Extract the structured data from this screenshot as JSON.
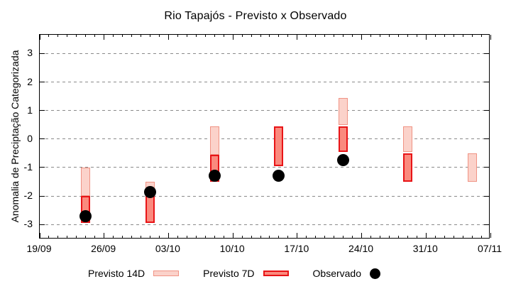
{
  "chart_data": {
    "type": "bar",
    "title": "Rio Tapajós - Previsto x Observado",
    "ylabel": "Anomalia de Preciptação Categorizada",
    "ylim": [
      -3.52,
      3.66
    ],
    "yticks": [
      -3,
      -2,
      -1,
      0,
      1,
      2,
      3
    ],
    "grid": "horizontal dashed gray lines at every integer y value",
    "x_axis": {
      "days_total": 49,
      "major_every": 7,
      "minor_every": 1,
      "major_labels": [
        "19/09",
        "26/09",
        "03/10",
        "10/10",
        "17/10",
        "24/10",
        "31/10",
        "07/11"
      ]
    },
    "legend": [
      {
        "label": "Previsto 14D",
        "swatch": "previsto14"
      },
      {
        "label": "Previsto 7D",
        "swatch": "previsto7"
      },
      {
        "label": "Observado",
        "swatch": "observado-dot"
      }
    ],
    "groups": [
      {
        "date": "24/09",
        "day": 5,
        "previsto14": [
          -1.0,
          -2.0
        ],
        "previsto7": [
          -2.0,
          -2.95
        ],
        "observado": -2.7
      },
      {
        "date": "01/10",
        "day": 12,
        "previsto14": [
          -1.5,
          -2.0
        ],
        "previsto7": [
          -2.0,
          -2.95
        ],
        "observado": -1.85
      },
      {
        "date": "08/10",
        "day": 19,
        "previsto14": [
          0.45,
          -0.55
        ],
        "previsto7": [
          -0.55,
          -1.5
        ],
        "observado": -1.3
      },
      {
        "date": "15/10",
        "day": 26,
        "previsto14": null,
        "previsto7": [
          0.45,
          -0.95
        ],
        "observado": -1.3
      },
      {
        "date": "22/10",
        "day": 33,
        "previsto14": [
          1.45,
          0.5
        ],
        "previsto7": [
          0.45,
          -0.45
        ],
        "observado": -0.75
      },
      {
        "date": "29/10",
        "day": 40,
        "previsto14": [
          0.45,
          -0.45
        ],
        "previsto7": [
          -0.5,
          -1.5
        ],
        "observado": null
      },
      {
        "date": "05/11",
        "day": 47,
        "previsto14": [
          -0.5,
          -1.5
        ],
        "previsto7": null,
        "observado": null
      }
    ],
    "colors": {
      "previsto14_fill": "#fbd2ca",
      "previsto14_border": "#f09384",
      "previsto7_fill": "#fa8a7e",
      "previsto7_border": "#e81417",
      "observado": "#000000",
      "grid": "#8a8a8a",
      "axis": "#000000",
      "background": "#ffffff"
    }
  }
}
